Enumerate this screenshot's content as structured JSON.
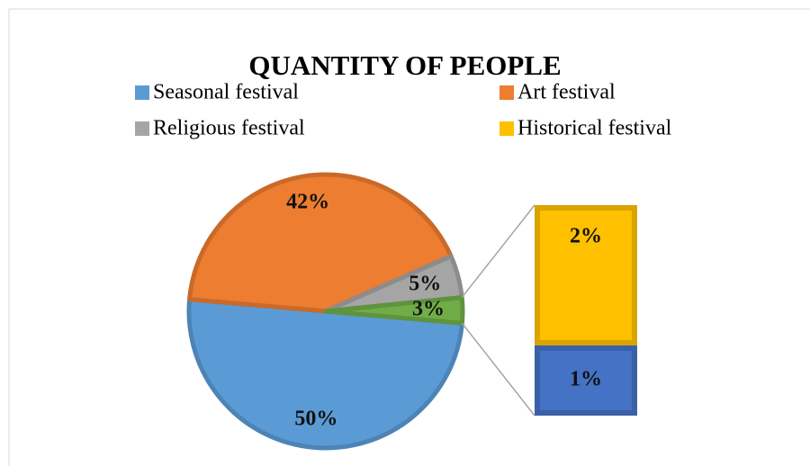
{
  "chart_data": {
    "type": "pie",
    "title": "QUANTITY OF PEOPLE",
    "categories": [
      "Seasonal festival",
      "Art festival",
      "Religious festival",
      null
    ],
    "values": [
      50,
      42,
      5,
      3
    ],
    "value_labels": [
      "50%",
      "42%",
      "5%",
      "3%"
    ],
    "colors": [
      "#5b9bd5",
      "#ed7d31",
      "#a5a5a5",
      "#70ad47"
    ],
    "bar": {
      "categories": [
        "Historical festival",
        null
      ],
      "values": [
        2,
        1
      ],
      "value_labels": [
        "2%",
        "1%"
      ],
      "colors": [
        "#ffc000",
        "#4472c4"
      ]
    }
  }
}
